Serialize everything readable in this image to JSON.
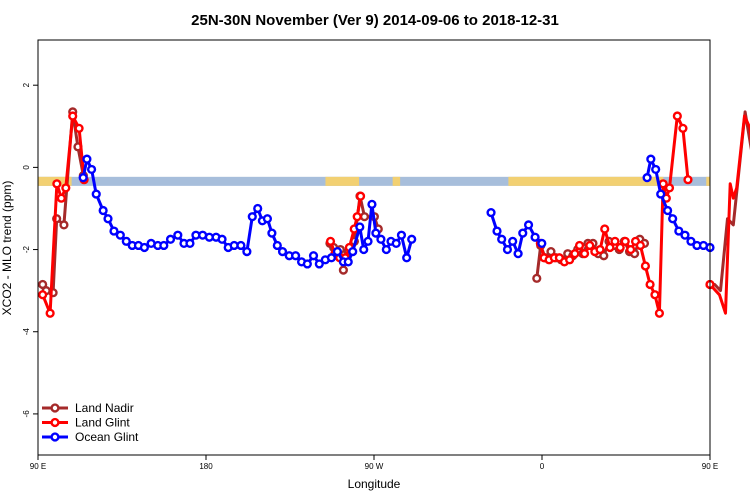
{
  "chart_data": {
    "type": "line",
    "title": "25N-30N November (Ver 9)   2014-09-06 to 2018-12-31",
    "xlabel": "Longitude",
    "ylabel": "XCO2 - MLO trend (ppm)",
    "xlim": [
      90,
      450
    ],
    "ylim": [
      -7,
      3.1
    ],
    "xticks": [
      {
        "value": 90,
        "label": "90 E"
      },
      {
        "value": 180,
        "label": "180"
      },
      {
        "value": 270,
        "label": "90 W"
      },
      {
        "value": 360,
        "label": "0"
      },
      {
        "value": 450,
        "label": "90 E"
      },
      {
        "value": 540,
        "label": "180"
      }
    ],
    "yticks": [
      {
        "value": 2,
        "label": "2"
      },
      {
        "value": 0,
        "label": "0"
      },
      {
        "value": -2,
        "label": "-2"
      },
      {
        "value": -4,
        "label": "-4"
      },
      {
        "value": -6,
        "label": "-6"
      }
    ],
    "land_sea_bar": {
      "y_top": -0.23,
      "y_bottom": -0.45,
      "ocean_color": "#a7bedb",
      "land_color": "#f2d072",
      "land_segments": [
        [
          90,
          108
        ],
        [
          244,
          262
        ],
        [
          280,
          284
        ],
        [
          342,
          425
        ],
        [
          448,
          468
        ]
      ]
    },
    "legend_position": "bottom-left",
    "series": [
      {
        "name": "Land Nadir",
        "color": "#a52a2a",
        "segments": [
          [
            [
              92.5,
              -2.85
            ],
            [
              94.4,
              -3.0
            ],
            [
              98.1,
              -3.05
            ],
            [
              100.0,
              -1.25
            ],
            [
              103.9,
              -1.4
            ],
            [
              108.6,
              1.35
            ],
            [
              111.4,
              0.5
            ],
            [
              114.3,
              -0.2
            ]
          ],
          [
            [
              450.0,
              -2.85
            ],
            [
              452.5,
              -2.85
            ],
            [
              455.6,
              -3.0
            ],
            [
              459.4,
              -1.25
            ],
            [
              462.5,
              -1.4
            ],
            [
              468.8,
              1.35
            ],
            [
              471.9,
              0.5
            ],
            [
              474.7,
              -0.2
            ]
          ],
          [
            [
              246.4,
              -1.85
            ],
            [
              248.4,
              -1.95
            ],
            [
              252.0,
              -2.0
            ],
            [
              253.6,
              -2.5
            ],
            [
              256.3,
              -2.05
            ],
            [
              259.5,
              -1.8
            ],
            [
              262.5,
              -0.7
            ],
            [
              264.9,
              -1.2
            ],
            [
              270.2,
              -1.2
            ],
            [
              272.3,
              -1.5
            ]
          ],
          [
            [
              357.2,
              -2.7
            ],
            [
              359.3,
              -1.9
            ],
            [
              361.7,
              -2.2
            ],
            [
              364.8,
              -2.05
            ],
            [
              367.5,
              -2.2
            ],
            [
              370.3,
              -2.25
            ],
            [
              373.8,
              -2.1
            ],
            [
              376.5,
              -2.15
            ],
            [
              379.1,
              -2.0
            ],
            [
              381.8,
              -2.1
            ],
            [
              384.6,
              -1.85
            ],
            [
              387.3,
              -1.85
            ],
            [
              390.1,
              -2.1
            ],
            [
              393.1,
              -2.15
            ],
            [
              395.9,
              -1.8
            ],
            [
              398.7,
              -1.9
            ],
            [
              401.4,
              -2.0
            ],
            [
              404.1,
              -1.8
            ],
            [
              406.9,
              -2.05
            ],
            [
              409.6,
              -2.1
            ],
            [
              412.4,
              -1.75
            ],
            [
              414.9,
              -1.85
            ]
          ]
        ]
      },
      {
        "name": "Land Glint",
        "color": "#ff0000",
        "segments": [
          [
            [
              92.5,
              -3.1
            ],
            [
              96.5,
              -3.55
            ],
            [
              100.1,
              -0.4
            ],
            [
              102.5,
              -0.75
            ],
            [
              104.9,
              -0.5
            ],
            [
              108.6,
              1.25
            ],
            [
              112.0,
              0.95
            ],
            [
              114.7,
              -0.3
            ]
          ],
          [
            [
              450.0,
              -2.85
            ],
            [
              455.1,
              -3.1
            ],
            [
              458.3,
              -3.55
            ],
            [
              460.8,
              -0.4
            ],
            [
              462.5,
              -0.75
            ],
            [
              464.3,
              -0.5
            ],
            [
              468.5,
              1.25
            ],
            [
              471.5,
              0.95
            ],
            [
              474.1,
              -0.3
            ]
          ],
          [
            [
              246.7,
              -1.8
            ],
            [
              249.1,
              -2.1
            ],
            [
              251.6,
              -2.2
            ],
            [
              254.6,
              -2.2
            ],
            [
              256.8,
              -1.95
            ],
            [
              259.4,
              -1.5
            ],
            [
              261.0,
              -1.2
            ],
            [
              262.8,
              -0.7
            ]
          ],
          [
            [
              359.1,
              -1.85
            ],
            [
              361.1,
              -2.2
            ],
            [
              363.8,
              -2.25
            ],
            [
              366.6,
              -2.2
            ],
            [
              369.3,
              -2.2
            ],
            [
              372.0,
              -2.3
            ],
            [
              374.8,
              -2.25
            ],
            [
              377.6,
              -2.1
            ],
            [
              380.1,
              -1.9
            ],
            [
              382.8,
              -2.1
            ],
            [
              385.6,
              -1.9
            ],
            [
              388.3,
              -2.05
            ],
            [
              391.1,
              -2.0
            ],
            [
              393.6,
              -1.5
            ],
            [
              396.4,
              -1.95
            ],
            [
              399.1,
              -1.8
            ],
            [
              401.9,
              -1.95
            ],
            [
              404.6,
              -1.8
            ],
            [
              407.5,
              -2.0
            ],
            [
              410.1,
              -1.8
            ],
            [
              412.7,
              -1.9
            ],
            [
              415.4,
              -2.4
            ],
            [
              417.9,
              -2.85
            ],
            [
              420.5,
              -3.1
            ],
            [
              422.9,
              -3.55
            ],
            [
              424.9,
              -0.4
            ],
            [
              426.6,
              -0.75
            ],
            [
              428.3,
              -0.5
            ],
            [
              432.5,
              1.25
            ],
            [
              435.5,
              0.95
            ],
            [
              438.2,
              -0.3
            ]
          ]
        ]
      },
      {
        "name": "Ocean Glint",
        "color": "#0000ff",
        "segments": [
          [
            [
              114.2,
              -0.25
            ],
            [
              116.2,
              0.2
            ],
            [
              118.7,
              -0.05
            ],
            [
              121.2,
              -0.65
            ],
            [
              124.9,
              -1.05
            ],
            [
              127.5,
              -1.25
            ],
            [
              130.7,
              -1.55
            ],
            [
              134.1,
              -1.65
            ],
            [
              137.3,
              -1.8
            ],
            [
              140.5,
              -1.9
            ],
            [
              143.8,
              -1.9
            ],
            [
              147.0,
              -1.95
            ],
            [
              150.6,
              -1.85
            ],
            [
              154.2,
              -1.9
            ],
            [
              157.4,
              -1.9
            ],
            [
              161.0,
              -1.75
            ],
            [
              164.9,
              -1.65
            ],
            [
              168.2,
              -1.85
            ],
            [
              171.4,
              -1.85
            ],
            [
              174.6,
              -1.65
            ],
            [
              178.2,
              -1.65
            ],
            [
              181.8,
              -1.7
            ],
            [
              185.4,
              -1.7
            ],
            [
              188.6,
              -1.75
            ],
            [
              191.9,
              -1.95
            ],
            [
              195.1,
              -1.9
            ],
            [
              198.7,
              -1.9
            ],
            [
              201.9,
              -2.05
            ],
            [
              204.8,
              -1.2
            ],
            [
              207.7,
              -1.0
            ],
            [
              210.2,
              -1.3
            ],
            [
              212.9,
              -1.25
            ],
            [
              215.3,
              -1.6
            ],
            [
              218.2,
              -1.9
            ],
            [
              221.0,
              -2.05
            ],
            [
              224.6,
              -2.15
            ],
            [
              228.0,
              -2.15
            ],
            [
              231.2,
              -2.3
            ],
            [
              234.3,
              -2.35
            ],
            [
              237.6,
              -2.15
            ],
            [
              240.7,
              -2.35
            ],
            [
              243.9,
              -2.25
            ],
            [
              247.2,
              -2.2
            ],
            [
              250.4,
              -2.05
            ],
            [
              253.6,
              -2.3
            ],
            [
              256.2,
              -2.3
            ],
            [
              258.6,
              -2.05
            ],
            [
              262.4,
              -1.45
            ],
            [
              264.5,
              -2.0
            ],
            [
              266.8,
              -1.8
            ],
            [
              268.9,
              -0.9
            ],
            [
              271.0,
              -1.6
            ],
            [
              273.7,
              -1.75
            ],
            [
              276.6,
              -2.0
            ],
            [
              279.1,
              -1.8
            ],
            [
              281.9,
              -1.85
            ],
            [
              284.7,
              -1.65
            ],
            [
              287.5,
              -2.2
            ],
            [
              290.2,
              -1.75
            ]
          ],
          [
            [
              332.7,
              -1.1
            ],
            [
              335.9,
              -1.55
            ],
            [
              338.4,
              -1.75
            ],
            [
              341.5,
              -2.0
            ],
            [
              344.3,
              -1.8
            ],
            [
              347.2,
              -2.1
            ],
            [
              349.7,
              -1.6
            ],
            [
              352.8,
              -1.4
            ],
            [
              356.3,
              -1.7
            ],
            [
              359.9,
              -1.85
            ]
          ],
          [
            [
              416.3,
              -0.25
            ],
            [
              418.3,
              0.2
            ],
            [
              420.9,
              -0.05
            ],
            [
              423.6,
              -0.65
            ],
            [
              427.3,
              -1.05
            ],
            [
              430.0,
              -1.25
            ],
            [
              433.3,
              -1.55
            ],
            [
              436.6,
              -1.65
            ],
            [
              439.8,
              -1.8
            ],
            [
              443.0,
              -1.9
            ],
            [
              446.5,
              -1.9
            ],
            [
              450.0,
              -1.95
            ]
          ]
        ]
      }
    ]
  }
}
